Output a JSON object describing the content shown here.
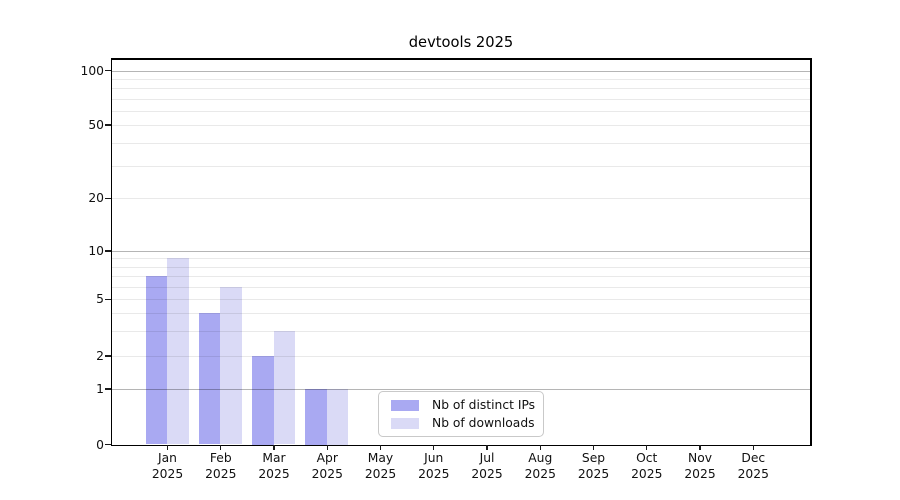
{
  "title": "devtools 2025",
  "chart_data": {
    "type": "bar",
    "title": "devtools 2025",
    "categories": [
      "Jan 2025",
      "Feb 2025",
      "Mar 2025",
      "Apr 2025",
      "May 2025",
      "Jun 2025",
      "Jul 2025",
      "Aug 2025",
      "Sep 2025",
      "Oct 2025",
      "Nov 2025",
      "Dec 2025"
    ],
    "series": [
      {
        "name": "Nb of distinct IPs",
        "color": "#a9a9f2",
        "values": [
          7,
          4,
          2,
          1,
          0,
          0,
          0,
          0,
          0,
          0,
          0,
          0
        ]
      },
      {
        "name": "Nb of downloads",
        "color": "#dadaf6",
        "values": [
          9,
          6,
          3,
          1,
          0,
          0,
          0,
          0,
          0,
          0,
          0,
          0
        ]
      }
    ],
    "xlabel": "",
    "ylabel": "",
    "yticks": [
      0,
      1,
      2,
      5,
      10,
      20,
      50,
      100
    ],
    "minor_gridline_values": [
      3,
      4,
      6,
      7,
      8,
      9,
      30,
      40,
      60,
      70,
      80,
      90
    ],
    "strong_gridline_values": [
      1,
      10,
      100
    ],
    "ylim": [
      0,
      115
    ],
    "yscale": "log-like",
    "grid": "horizontal major+minor",
    "legend_position": "lower center",
    "colors": {
      "bar_distinct_ips": "#a9a9f2",
      "bar_downloads": "#dadaf6",
      "grid_major": "#b3b3b3",
      "grid_minor": "#e9e9e9",
      "axis": "#000000",
      "text": "#111111"
    }
  }
}
